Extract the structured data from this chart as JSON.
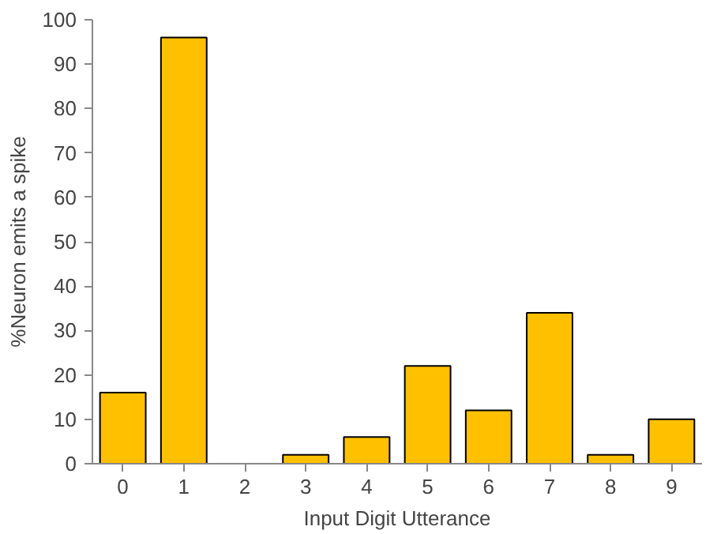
{
  "chart_data": {
    "type": "bar",
    "xlabel": "Input Digit Utterance",
    "ylabel": "%Neuron emits a spike",
    "categories": [
      "0",
      "1",
      "2",
      "3",
      "4",
      "5",
      "6",
      "7",
      "8",
      "9"
    ],
    "values": [
      16,
      96,
      0,
      2,
      6,
      22,
      12,
      34,
      2,
      10
    ],
    "color": "#ffc000",
    "ylim": [
      0,
      100
    ],
    "yticks": [
      0,
      10,
      20,
      30,
      40,
      50,
      60,
      70,
      80,
      90,
      100
    ],
    "grid": false
  }
}
